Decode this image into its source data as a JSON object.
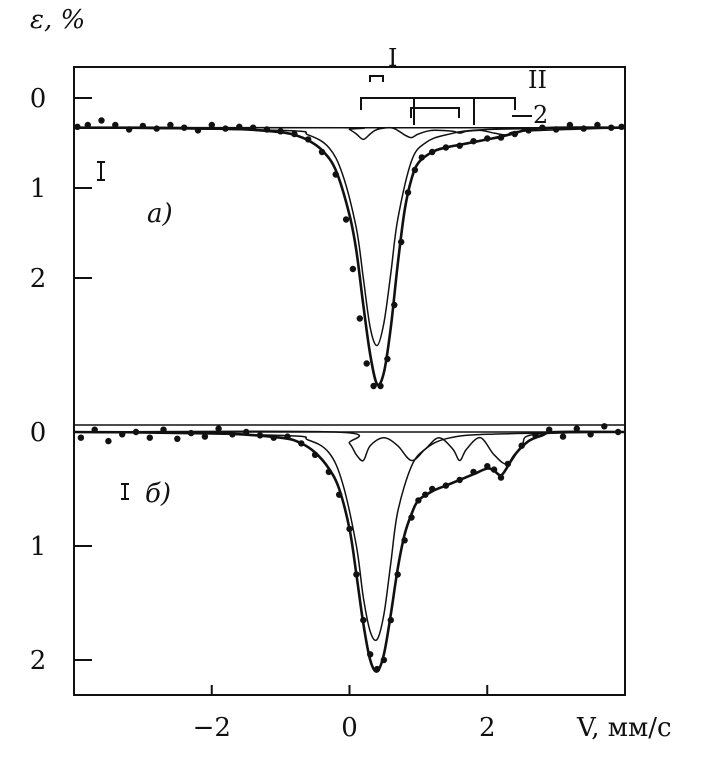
{
  "chart_data": [
    {
      "type": "line",
      "panel_label": "a)",
      "ylabel": "ε, %",
      "xlabel": "V, мм/с",
      "xlim": [
        -4.0,
        4.0
      ],
      "ylim": [
        0,
        3.2
      ],
      "y_inverted": true,
      "yticks": [
        0,
        1,
        2
      ],
      "xticks": [
        -2,
        0,
        2
      ],
      "baseline": 0.33,
      "annotations": [
        "I",
        "II",
        "2"
      ],
      "series": [
        {
          "style": "points",
          "x": [
            -3.95,
            -3.8,
            -3.6,
            -3.4,
            -3.2,
            -3.0,
            -2.8,
            -2.6,
            -2.4,
            -2.2,
            -2.0,
            -1.8,
            -1.6,
            -1.4,
            -1.2,
            -1.0,
            -0.8,
            -0.6,
            -0.4,
            -0.2,
            -0.05,
            0.05,
            0.15,
            0.25,
            0.35,
            0.45,
            0.55,
            0.65,
            0.75,
            0.85,
            0.95,
            1.05,
            1.2,
            1.4,
            1.6,
            1.8,
            2.0,
            2.2,
            2.4,
            2.6,
            2.8,
            3.0,
            3.2,
            3.4,
            3.6,
            3.8,
            3.95
          ],
          "y": [
            0.32,
            0.3,
            0.25,
            0.3,
            0.35,
            0.31,
            0.34,
            0.3,
            0.33,
            0.36,
            0.3,
            0.34,
            0.32,
            0.33,
            0.35,
            0.37,
            0.4,
            0.46,
            0.6,
            0.85,
            1.35,
            1.9,
            2.45,
            2.95,
            3.2,
            3.2,
            2.9,
            2.3,
            1.6,
            1.05,
            0.8,
            0.66,
            0.6,
            0.55,
            0.53,
            0.48,
            0.45,
            0.44,
            0.4,
            0.36,
            0.33,
            0.35,
            0.3,
            0.34,
            0.3,
            0.33,
            0.32
          ]
        },
        {
          "style": "envelope",
          "x": [
            -4.0,
            -3.0,
            -2.0,
            -1.5,
            -1.0,
            -0.8,
            -0.6,
            -0.4,
            -0.2,
            0.0,
            0.1,
            0.2,
            0.3,
            0.4,
            0.5,
            0.6,
            0.7,
            0.8,
            0.9,
            1.0,
            1.2,
            1.4,
            1.6,
            1.8,
            2.0,
            2.2,
            2.4,
            2.6,
            3.0,
            4.0
          ],
          "y": [
            0.33,
            0.33,
            0.34,
            0.35,
            0.38,
            0.41,
            0.47,
            0.58,
            0.8,
            1.3,
            1.7,
            2.3,
            2.85,
            3.18,
            3.05,
            2.55,
            1.85,
            1.25,
            0.9,
            0.72,
            0.6,
            0.55,
            0.52,
            0.49,
            0.46,
            0.43,
            0.39,
            0.35,
            0.33,
            0.33
          ]
        },
        {
          "style": "component",
          "x": [
            -4.0,
            -1.0,
            -0.6,
            -0.3,
            -0.1,
            0.1,
            0.2,
            0.3,
            0.4,
            0.5,
            0.6,
            0.7,
            0.9,
            1.1,
            1.4,
            2.0,
            4.0
          ],
          "y": [
            0.33,
            0.36,
            0.41,
            0.55,
            0.85,
            1.45,
            2.0,
            2.55,
            2.75,
            2.5,
            1.95,
            1.35,
            0.7,
            0.5,
            0.41,
            0.35,
            0.33
          ]
        },
        {
          "style": "component",
          "x": [
            -4.0,
            -0.1,
            0.0,
            0.1,
            0.2,
            0.3,
            0.4,
            0.6,
            0.7,
            0.8,
            0.9,
            1.0,
            1.2,
            1.5,
            1.6,
            1.7,
            1.9,
            2.1,
            2.3,
            2.5,
            4.0
          ],
          "y": [
            0.33,
            0.33,
            0.35,
            0.4,
            0.46,
            0.4,
            0.35,
            0.33,
            0.36,
            0.41,
            0.44,
            0.4,
            0.36,
            0.37,
            0.39,
            0.37,
            0.36,
            0.39,
            0.41,
            0.37,
            0.33
          ]
        }
      ]
    },
    {
      "type": "line",
      "panel_label": "б)",
      "ylabel": "",
      "xlabel": "V, мм/с",
      "xlim": [
        -4.0,
        4.0
      ],
      "ylim": [
        -0.1,
        2.3
      ],
      "y_inverted": true,
      "yticks": [
        0,
        1,
        2
      ],
      "xticks": [
        -2,
        0,
        2
      ],
      "baseline": 0.0,
      "series": [
        {
          "style": "points",
          "x": [
            -3.9,
            -3.7,
            -3.5,
            -3.3,
            -3.1,
            -2.9,
            -2.7,
            -2.5,
            -2.3,
            -2.1,
            -1.9,
            -1.7,
            -1.5,
            -1.3,
            -1.1,
            -0.9,
            -0.7,
            -0.5,
            -0.3,
            -0.15,
            0.0,
            0.1,
            0.2,
            0.3,
            0.4,
            0.5,
            0.6,
            0.7,
            0.8,
            0.9,
            1.0,
            1.1,
            1.2,
            1.4,
            1.6,
            1.8,
            2.0,
            2.1,
            2.2,
            2.3,
            2.5,
            2.7,
            2.9,
            3.1,
            3.3,
            3.5,
            3.7,
            3.9
          ],
          "y": [
            0.05,
            -0.02,
            0.08,
            0.02,
            0.0,
            0.05,
            -0.02,
            0.06,
            0.01,
            0.04,
            -0.03,
            0.02,
            0.0,
            0.03,
            0.05,
            0.04,
            0.1,
            0.2,
            0.35,
            0.55,
            0.85,
            1.25,
            1.65,
            1.95,
            2.08,
            2.0,
            1.65,
            1.25,
            0.95,
            0.75,
            0.6,
            0.55,
            0.5,
            0.47,
            0.42,
            0.35,
            0.3,
            0.33,
            0.4,
            0.28,
            0.12,
            0.03,
            -0.02,
            0.04,
            -0.03,
            0.02,
            -0.05,
            0.0
          ]
        },
        {
          "style": "envelope",
          "x": [
            -4.0,
            -2.0,
            -1.0,
            -0.7,
            -0.5,
            -0.3,
            -0.15,
            0.0,
            0.1,
            0.2,
            0.3,
            0.4,
            0.5,
            0.6,
            0.7,
            0.8,
            0.9,
            1.0,
            1.2,
            1.4,
            1.6,
            1.8,
            2.0,
            2.1,
            2.2,
            2.3,
            2.4,
            2.6,
            2.8,
            3.0,
            4.0
          ],
          "y": [
            0.0,
            0.01,
            0.05,
            0.1,
            0.18,
            0.32,
            0.5,
            0.85,
            1.25,
            1.68,
            2.0,
            2.1,
            1.95,
            1.6,
            1.2,
            0.9,
            0.72,
            0.6,
            0.52,
            0.47,
            0.42,
            0.37,
            0.32,
            0.34,
            0.38,
            0.3,
            0.2,
            0.08,
            0.03,
            0.0,
            0.0
          ]
        },
        {
          "style": "component",
          "x": [
            -4.0,
            -1.0,
            -0.6,
            -0.3,
            -0.1,
            0.1,
            0.2,
            0.3,
            0.4,
            0.5,
            0.6,
            0.7,
            0.9,
            1.1,
            1.4,
            2.0,
            4.0
          ],
          "y": [
            0.0,
            0.03,
            0.07,
            0.18,
            0.45,
            1.0,
            1.45,
            1.75,
            1.82,
            1.6,
            1.15,
            0.7,
            0.3,
            0.15,
            0.06,
            0.02,
            0.0
          ]
        },
        {
          "style": "component",
          "x": [
            -4.0,
            -0.2,
            0.0,
            0.1,
            0.2,
            0.3,
            0.5,
            0.7,
            0.9,
            1.1,
            1.3,
            1.5,
            1.6,
            1.7,
            1.9,
            2.1,
            2.3,
            2.5,
            2.7,
            4.0
          ],
          "y": [
            0.0,
            0.0,
            0.1,
            0.2,
            0.25,
            0.12,
            0.05,
            0.12,
            0.25,
            0.15,
            0.05,
            0.15,
            0.25,
            0.15,
            0.05,
            0.2,
            0.28,
            0.12,
            0.02,
            0.0
          ]
        }
      ]
    }
  ]
}
